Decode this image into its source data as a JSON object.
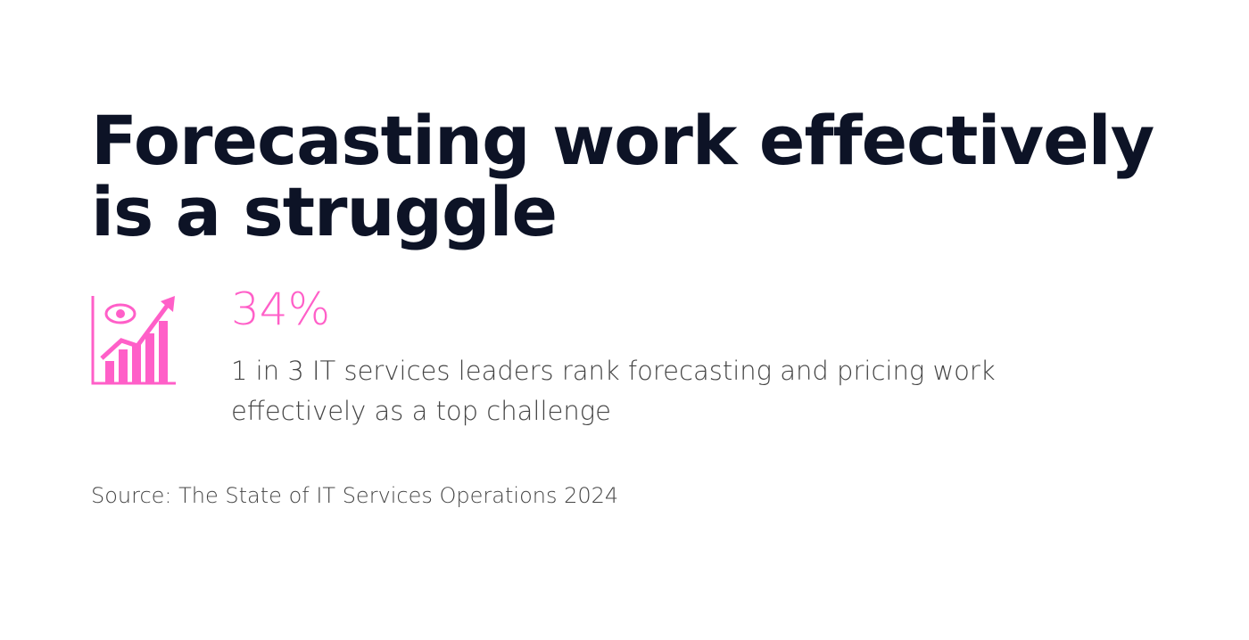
{
  "title": "Forecasting work effectively is a struggle",
  "stat": {
    "value": "34%",
    "description": "1 in 3 IT services leaders rank forecasting and pricing work effectively as a top challenge"
  },
  "source": "Source: The State of IT Services Operations 2024"
}
